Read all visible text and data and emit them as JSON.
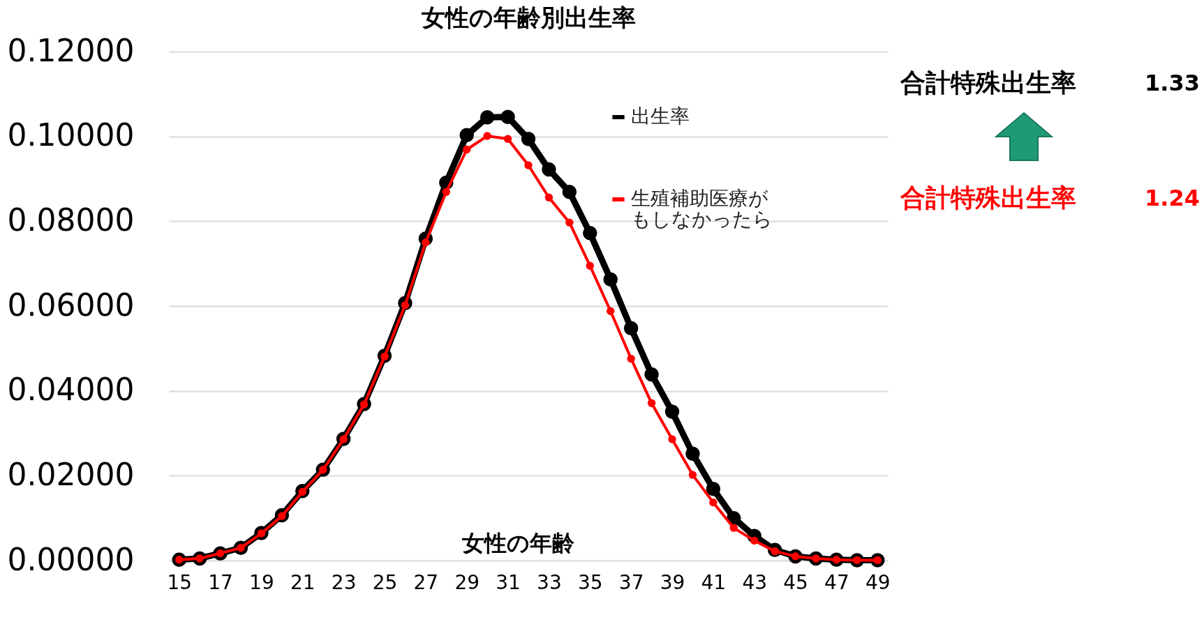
{
  "chart_data": {
    "type": "line",
    "title": "女性の年齢別出生率",
    "xlabel": "女性の年齢",
    "x": [
      15,
      16,
      17,
      18,
      19,
      20,
      21,
      22,
      23,
      24,
      25,
      26,
      27,
      28,
      29,
      30,
      31,
      32,
      33,
      34,
      35,
      36,
      37,
      38,
      39,
      40,
      41,
      42,
      43,
      44,
      45,
      46,
      47,
      48,
      49
    ],
    "series": [
      {
        "name": "出生率",
        "color": "#000000",
        "values": [
          0.0002,
          0.0005,
          0.0017,
          0.003,
          0.0065,
          0.0107,
          0.0164,
          0.0214,
          0.0287,
          0.0369,
          0.0483,
          0.0607,
          0.0759,
          0.0891,
          0.1003,
          0.1045,
          0.1046,
          0.0994,
          0.0922,
          0.0869,
          0.0772,
          0.0663,
          0.0548,
          0.0439,
          0.0351,
          0.0252,
          0.0169,
          0.01,
          0.0058,
          0.0025,
          0.001,
          0.0005,
          0.0002,
          0.0001,
          0.0001
        ]
      },
      {
        "name": "生殖補助医療がもしなかったら",
        "color": "#ff0000",
        "values": [
          0.0002,
          0.0005,
          0.0017,
          0.003,
          0.0064,
          0.0105,
          0.0162,
          0.0214,
          0.0286,
          0.0368,
          0.0481,
          0.0602,
          0.075,
          0.0869,
          0.0969,
          0.1001,
          0.0994,
          0.0932,
          0.0856,
          0.0797,
          0.0695,
          0.0588,
          0.0476,
          0.0371,
          0.0286,
          0.0202,
          0.0137,
          0.0077,
          0.0047,
          0.0022,
          0.001,
          0.0005,
          0.0002,
          0.0001,
          0.0001
        ]
      }
    ],
    "xlim": [
      14.5,
      49.5
    ],
    "xticks": [
      15,
      17,
      19,
      21,
      23,
      25,
      27,
      29,
      31,
      33,
      35,
      37,
      39,
      41,
      43,
      45,
      47,
      49
    ],
    "ylim": [
      0,
      0.12
    ],
    "yticks": [
      {
        "value": 0,
        "label": "0.00000"
      },
      {
        "value": 0.02,
        "label": "0.02000"
      },
      {
        "value": 0.04,
        "label": "0.04000"
      },
      {
        "value": 0.06,
        "label": "0.06000"
      },
      {
        "value": 0.08,
        "label": "0.08000"
      },
      {
        "value": 0.1,
        "label": "0.10000"
      },
      {
        "value": 0.12,
        "label": "0.12000"
      }
    ],
    "grid": "y",
    "legend": "top right",
    "marker": "circle",
    "annotations": [
      "合計特殊出生率",
      "1.33",
      "合計特殊出生率",
      "1.24"
    ]
  }
}
